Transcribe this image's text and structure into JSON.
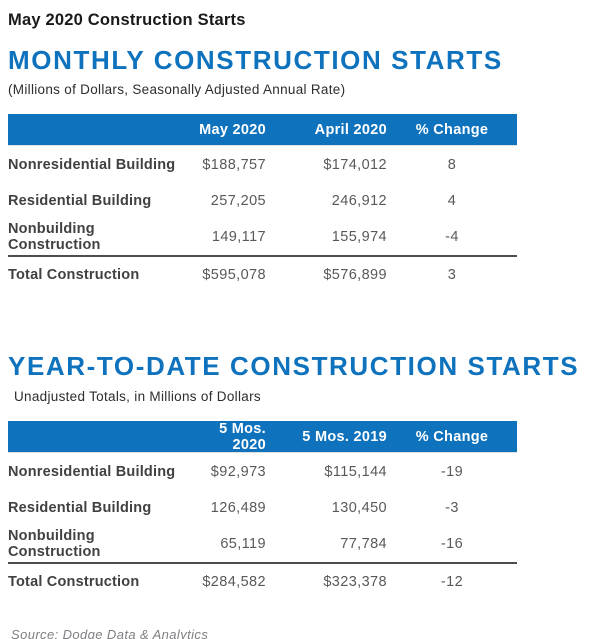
{
  "page": {
    "title": "May 2020 Construction Starts",
    "source": "Source: Dodge Data & Analytics"
  },
  "colors": {
    "accent_blue": "#0E72BD",
    "header_text": "#FFFFFF",
    "label_dark": "#414042",
    "number_gray": "#58595B",
    "divider_dark": "#4C4D4F",
    "source_gray": "#7D7F82",
    "title_black": "#1A1A1A"
  },
  "sections": [
    {
      "heading": "MONTHLY CONSTRUCTION STARTS",
      "subheading": "(Millions of Dollars, Seasonally Adjusted Annual Rate)",
      "table": {
        "columns": [
          "May 2020",
          "April 2020",
          "% Change"
        ],
        "rows": [
          {
            "label": "Nonresidential Building",
            "col1": "$188,757",
            "col2": "$174,012",
            "change": "8"
          },
          {
            "label": "Residential Building",
            "col1": "257,205",
            "col2": "246,912",
            "change": "4"
          },
          {
            "label": "Nonbuilding Construction",
            "col1": "149,117",
            "col2": "155,974",
            "change": "-4"
          }
        ],
        "total": {
          "label": "Total Construction",
          "col1": "$595,078",
          "col2": "$576,899",
          "change": "3"
        }
      }
    },
    {
      "heading": "YEAR-TO-DATE CONSTRUCTION STARTS",
      "subheading": "Unadjusted Totals, in Millions of Dollars",
      "table": {
        "columns": [
          "5 Mos. 2020",
          "5 Mos. 2019",
          "% Change"
        ],
        "rows": [
          {
            "label": "Nonresidential Building",
            "col1": "$92,973",
            "col2": "$115,144",
            "change": "-19"
          },
          {
            "label": "Residential Building",
            "col1": "126,489",
            "col2": "130,450",
            "change": "-3"
          },
          {
            "label": "Nonbuilding Construction",
            "col1": "65,119",
            "col2": "77,784",
            "change": "-16"
          }
        ],
        "total": {
          "label": "Total Construction",
          "col1": "$284,582",
          "col2": "$323,378",
          "change": "-12"
        }
      }
    }
  ],
  "chart_data": [
    {
      "type": "table",
      "title": "MONTHLY CONSTRUCTION STARTS",
      "subtitle": "(Millions of Dollars, Seasonally Adjusted Annual Rate)",
      "columns": [
        "",
        "May 2020",
        "April 2020",
        "% Change"
      ],
      "rows": [
        [
          "Nonresidential Building",
          188757,
          174012,
          8
        ],
        [
          "Residential Building",
          257205,
          246912,
          4
        ],
        [
          "Nonbuilding Construction",
          149117,
          155974,
          -4
        ],
        [
          "Total Construction",
          595078,
          576899,
          3
        ]
      ]
    },
    {
      "type": "table",
      "title": "YEAR-TO-DATE CONSTRUCTION STARTS",
      "subtitle": "Unadjusted Totals, in Millions of Dollars",
      "columns": [
        "",
        "5 Mos. 2020",
        "5 Mos. 2019",
        "% Change"
      ],
      "rows": [
        [
          "Nonresidential Building",
          92973,
          115144,
          -19
        ],
        [
          "Residential Building",
          126489,
          130450,
          -3
        ],
        [
          "Nonbuilding Construction",
          65119,
          77784,
          -16
        ],
        [
          "Total Construction",
          284582,
          323378,
          -12
        ]
      ]
    }
  ]
}
